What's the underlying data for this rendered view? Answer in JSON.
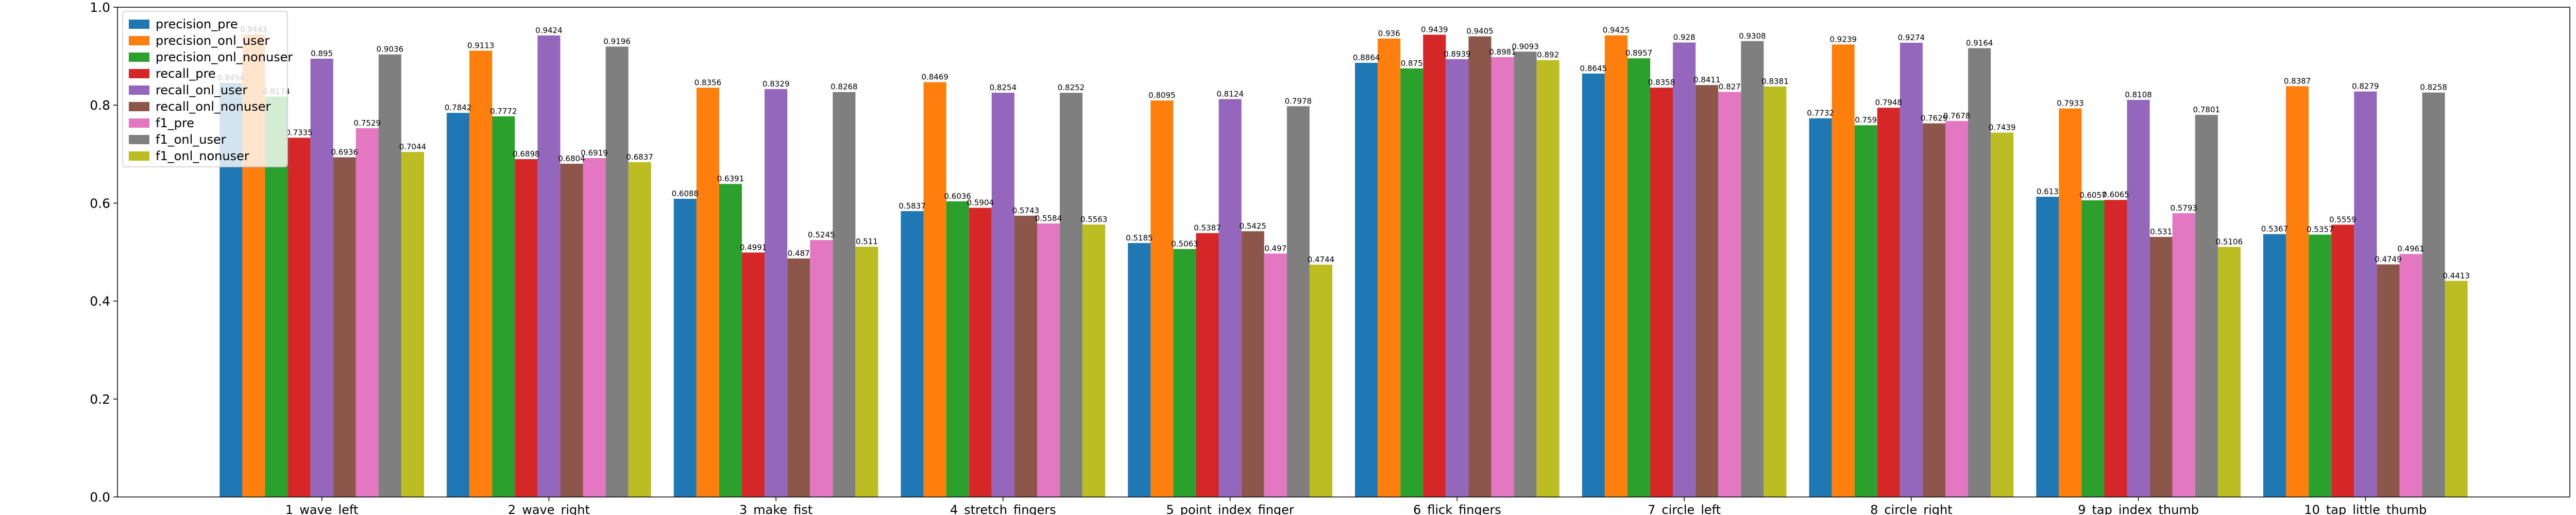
{
  "chart_data": {
    "type": "bar",
    "categories": [
      "1_wave_left",
      "2_wave_right",
      "3_make_fist",
      "4_stretch_fingers",
      "5_point_index_finger",
      "6_flick_fingers",
      "7_circle_left",
      "8_circle_right",
      "9_tap_index_thumb",
      "10_tap_little_thumb"
    ],
    "series": [
      {
        "name": "precision_pre",
        "color": "#1f77b4",
        "values": [
          0.8454,
          0.7842,
          0.6088,
          0.5837,
          0.5185,
          0.8864,
          0.8645,
          0.7732,
          0.613,
          0.5367
        ],
        "labels": [
          "0.8454",
          "0.7842",
          "0.6088",
          "0.5837",
          "0.5185",
          "0.8864",
          "0.8645",
          "0.7732",
          "0.613",
          "0.5367"
        ]
      },
      {
        "name": "precision_onl_user",
        "color": "#ff7f0e",
        "values": [
          0.9443,
          0.9113,
          0.8356,
          0.8469,
          0.8095,
          0.936,
          0.9425,
          0.9239,
          0.7933,
          0.8387
        ],
        "labels": [
          "0.9443",
          "0.9113",
          "0.8356",
          "0.8469",
          "0.8095",
          "0.936",
          "0.9425",
          "0.9239",
          "0.7933",
          "0.8387"
        ]
      },
      {
        "name": "precision_onl_nonuser",
        "color": "#2ca02c",
        "values": [
          0.8174,
          0.7772,
          0.6391,
          0.6036,
          0.5063,
          0.875,
          0.8957,
          0.759,
          0.6057,
          0.5357
        ],
        "labels": [
          "0.8174",
          "0.7772",
          "0.6391",
          "0.6036",
          "0.5063",
          "0.875",
          "0.8957",
          "0.759",
          "0.6057",
          "0.5357"
        ]
      },
      {
        "name": "recall_pre",
        "color": "#d62728",
        "values": [
          0.7335,
          0.6898,
          0.4991,
          0.5904,
          0.5387,
          0.9439,
          0.8358,
          0.7948,
          0.6065,
          0.5559
        ],
        "labels": [
          "0.7335",
          "0.6898",
          "0.4991",
          "0.5904",
          "0.5387",
          "0.9439",
          "0.8358",
          "0.7948",
          "0.6065",
          "0.5559"
        ]
      },
      {
        "name": "recall_onl_user",
        "color": "#9467bd",
        "values": [
          0.895,
          0.9424,
          0.8329,
          0.8254,
          0.8124,
          0.8939,
          0.928,
          0.9274,
          0.8108,
          0.8279
        ],
        "labels": [
          "0.895",
          "0.9424",
          "0.8329",
          "0.8254",
          "0.8124",
          "0.8939",
          "0.928",
          "0.9274",
          "0.8108",
          "0.8279"
        ]
      },
      {
        "name": "recall_onl_nonuser",
        "color": "#8c564b",
        "values": [
          0.6936,
          0.6804,
          0.487,
          0.5743,
          0.5425,
          0.9405,
          0.8411,
          0.7629,
          0.531,
          0.4749
        ],
        "labels": [
          "0.6936",
          "0.6804",
          "0.487",
          "0.5743",
          "0.5425",
          "0.9405",
          "0.8411",
          "0.7629",
          "0.531",
          "0.4749"
        ]
      },
      {
        "name": "f1_pre",
        "color": "#e377c2",
        "values": [
          0.7529,
          0.6919,
          0.5245,
          0.5584,
          0.497,
          0.8981,
          0.827,
          0.7678,
          0.5793,
          0.4961
        ],
        "labels": [
          "0.7529",
          "0.6919",
          "0.5245",
          "0.5584",
          "0.497",
          "0.8981",
          "0.827",
          "0.7678",
          "0.5793",
          "0.4961"
        ]
      },
      {
        "name": "f1_onl_user",
        "color": "#7f7f7f",
        "values": [
          0.9036,
          0.9196,
          0.8268,
          0.8252,
          0.7978,
          0.9093,
          0.9308,
          0.9164,
          0.7801,
          0.8258
        ],
        "labels": [
          "0.9036",
          "0.9196",
          "0.8268",
          "0.8252",
          "0.7978",
          "0.9093",
          "0.9308",
          "0.9164",
          "0.7801",
          "0.8258"
        ]
      },
      {
        "name": "f1_onl_nonuser",
        "color": "#bcbd22",
        "values": [
          0.7044,
          0.6837,
          0.511,
          0.5563,
          0.4744,
          0.892,
          0.8381,
          0.7439,
          0.5106,
          0.4413
        ],
        "labels": [
          "0.7044",
          "0.6837",
          "0.511",
          "0.5563",
          "0.4744",
          "0.892",
          "0.8381",
          "0.7439",
          "0.5106",
          "0.4413"
        ]
      }
    ],
    "title": "",
    "xlabel": "",
    "ylabel": "",
    "ylim": [
      0.0,
      1.0
    ],
    "yticks": [
      "0.0",
      "0.2",
      "0.4",
      "0.6",
      "0.8",
      "1.0"
    ],
    "grid": false,
    "legend_position": "top-left"
  }
}
